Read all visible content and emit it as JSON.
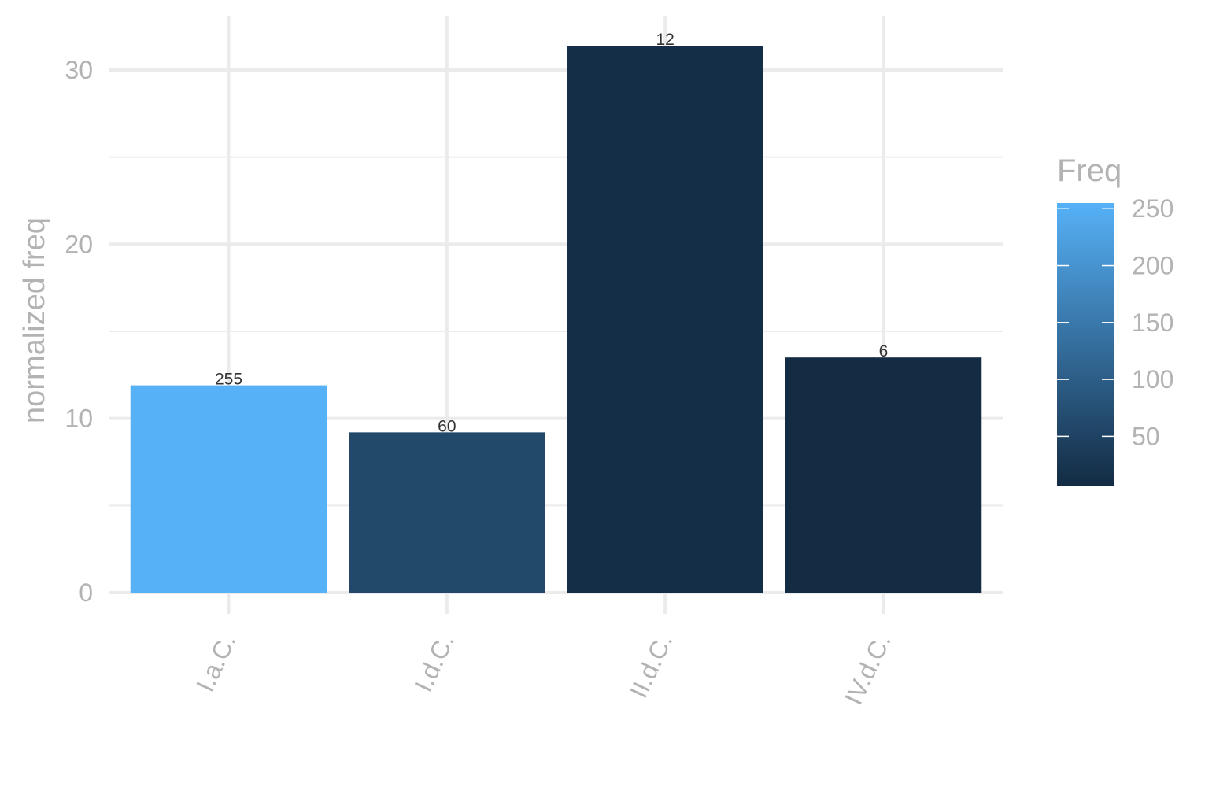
{
  "chart_data": {
    "type": "bar",
    "title": "",
    "xlabel": "",
    "ylabel": "normalized freq",
    "categories": [
      "I.a.C.",
      "I.d.C.",
      "II.d.C.",
      "IV.d.C."
    ],
    "values": [
      11.9,
      9.2,
      31.4,
      13.5
    ],
    "freq": [
      255,
      60,
      12,
      6
    ],
    "data_labels": [
      "255",
      "60",
      "12",
      "6"
    ],
    "ylim": [
      0,
      32.5
    ],
    "yticks": [
      0,
      10,
      20,
      30
    ],
    "grid": true,
    "legend": {
      "title": "Freq",
      "placement": "right",
      "type": "colorbar",
      "min": 6,
      "max": 255,
      "ticks": [
        250,
        200,
        150,
        100,
        50
      ],
      "low_color": "#132b43",
      "high_color": "#56b1f7"
    }
  }
}
